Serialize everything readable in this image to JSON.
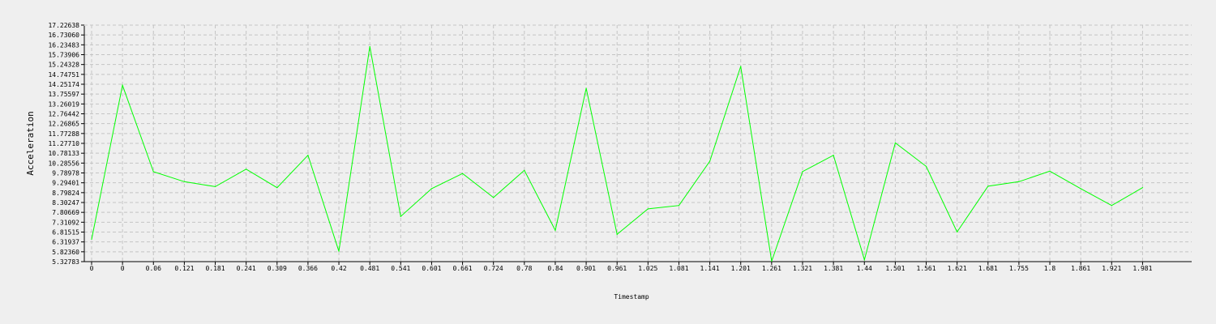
{
  "chart_data": {
    "type": "line",
    "xlabel": "Timestamp",
    "ylabel": "Acceleration",
    "grid": true,
    "line_color": "#00ff00",
    "background": "#efefef",
    "ylim": [
      5.32783,
      17.22638
    ],
    "y_ticks": [
      "5.32783",
      "5.82360",
      "6.31937",
      "6.81515",
      "7.31092",
      "7.80669",
      "8.30247",
      "8.79824",
      "9.29401",
      "9.78978",
      "10.28556",
      "10.78133",
      "11.27710",
      "11.77288",
      "12.26865",
      "12.76442",
      "13.26019",
      "13.75597",
      "14.25174",
      "14.74751",
      "15.24328",
      "15.73906",
      "16.23483",
      "16.73060",
      "17.22638"
    ],
    "x": [
      "0",
      "0",
      "0.06",
      "0.121",
      "0.181",
      "0.241",
      "0.309",
      "0.366",
      "0.42",
      "0.481",
      "0.541",
      "0.601",
      "0.661",
      "0.724",
      "0.78",
      "0.84",
      "0.901",
      "0.961",
      "1.025",
      "1.081",
      "1.141",
      "1.201",
      "1.261",
      "1.321",
      "1.381",
      "1.44",
      "1.501",
      "1.561",
      "1.621",
      "1.681",
      "1.755",
      "1.8",
      "1.861",
      "1.921",
      "1.981"
    ],
    "series": [
      {
        "values": [
          6.45,
          14.2,
          9.85,
          9.35,
          9.1,
          9.98,
          9.05,
          10.68,
          5.85,
          16.15,
          7.6,
          9.0,
          9.76,
          8.55,
          9.92,
          6.9,
          14.05,
          6.7,
          7.98,
          8.15,
          10.38,
          15.15,
          5.35,
          9.86,
          10.68,
          5.42,
          11.3,
          10.12,
          6.82,
          9.12,
          9.35,
          9.88,
          9.0,
          8.15,
          9.05
        ]
      }
    ]
  }
}
